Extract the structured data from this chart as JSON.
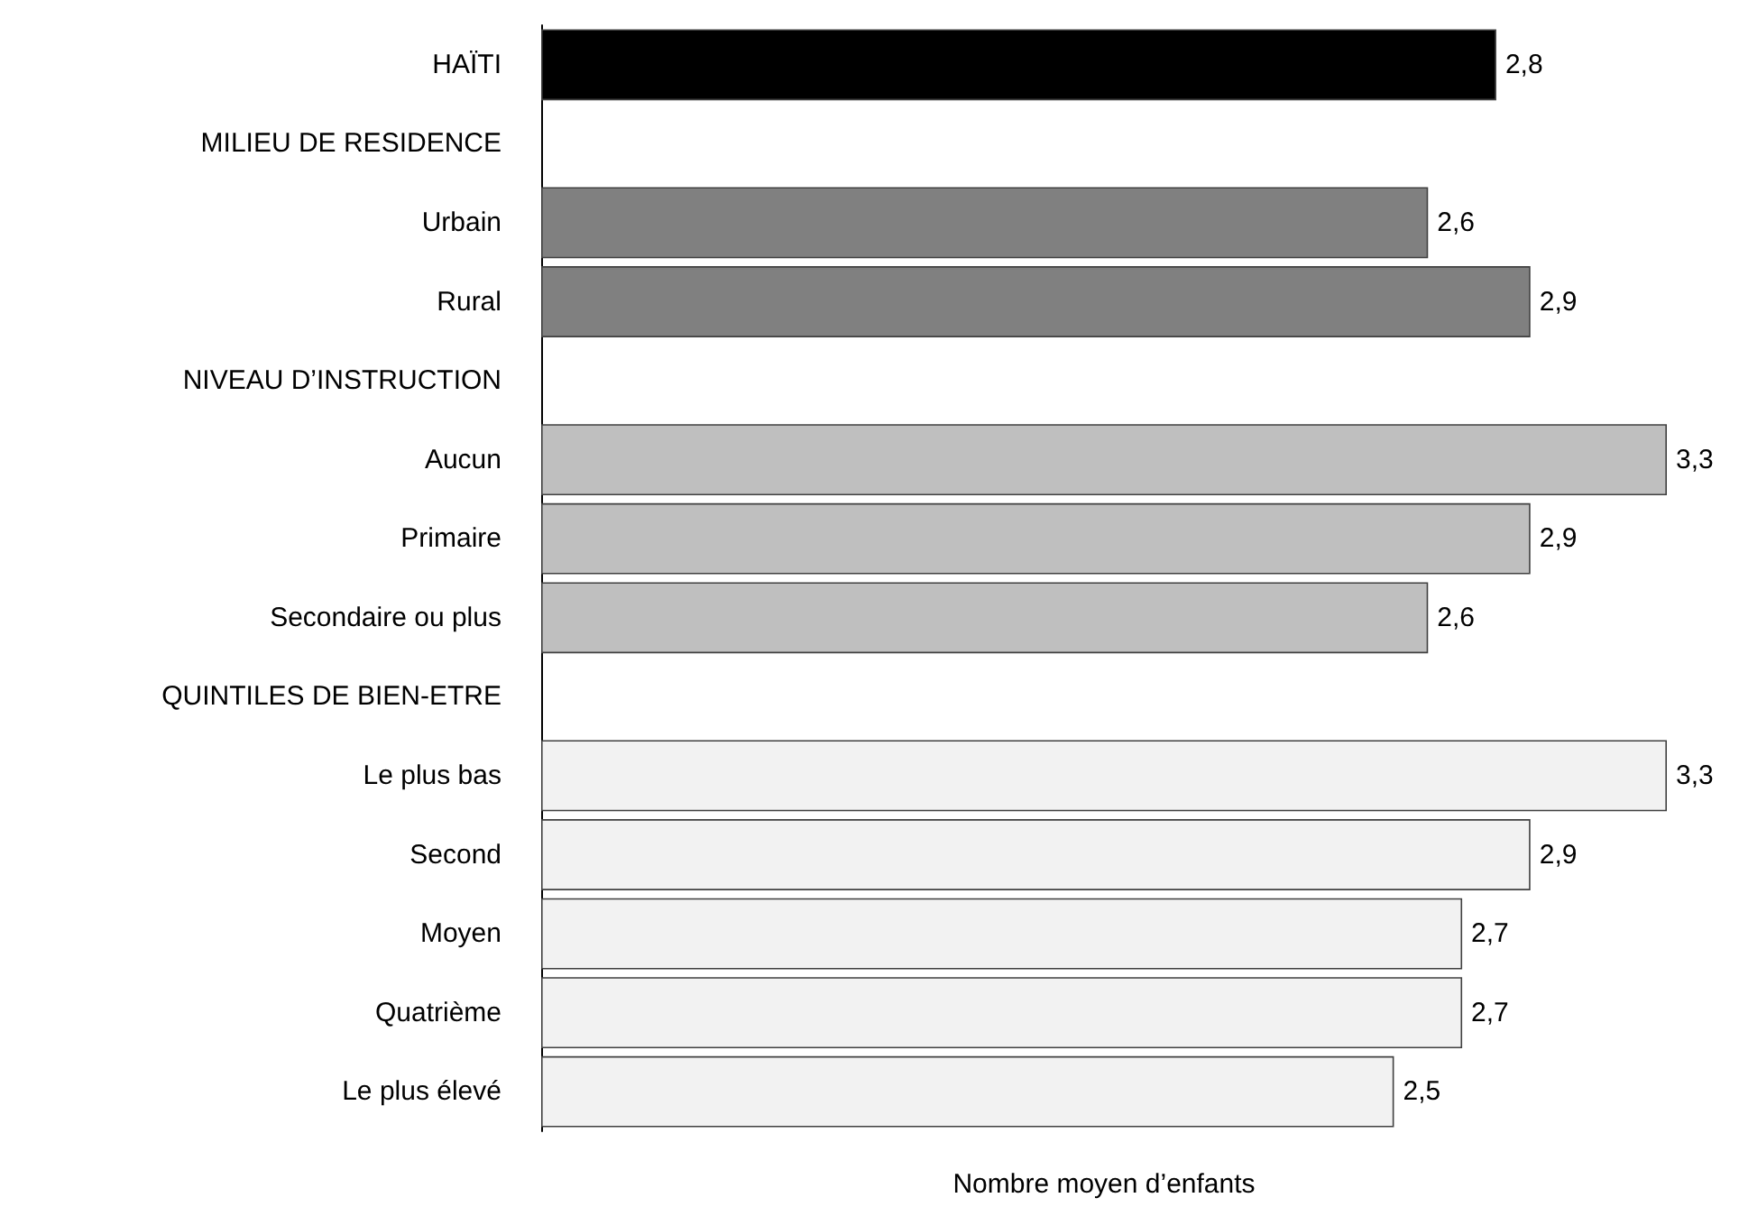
{
  "chart_data": {
    "type": "bar",
    "orientation": "horizontal",
    "xlabel": "Nombre moyen d’enfants",
    "tick_labels": "y",
    "categories": [
      "HAÏTI",
      "MILIEU DE RESIDENCE",
      "Urbain",
      "Rural",
      "NIVEAU D’INSTRUCTION",
      "Aucun",
      "Primaire",
      "Secondaire ou plus",
      "QUINTILES DE BIEN-ETRE",
      "Le plus bas",
      "Second",
      "Moyen",
      "Quatrième",
      "Le plus élevé"
    ],
    "values": [
      2.8,
      null,
      2.6,
      2.9,
      null,
      3.3,
      2.9,
      2.6,
      null,
      3.3,
      2.9,
      2.7,
      2.7,
      2.5
    ],
    "value_labels": [
      "2,8",
      null,
      "2,6",
      "2,9",
      null,
      "3,3",
      "2,9",
      "2,6",
      null,
      "3,3",
      "2,9",
      "2,7",
      "2,7",
      "2,5"
    ],
    "colors": [
      "#000000",
      null,
      "#808080",
      "#808080",
      null,
      "#bfbfbf",
      "#bfbfbf",
      "#bfbfbf",
      null,
      "#f2f2f2",
      "#f2f2f2",
      "#f2f2f2",
      "#f2f2f2",
      "#f2f2f2"
    ]
  }
}
